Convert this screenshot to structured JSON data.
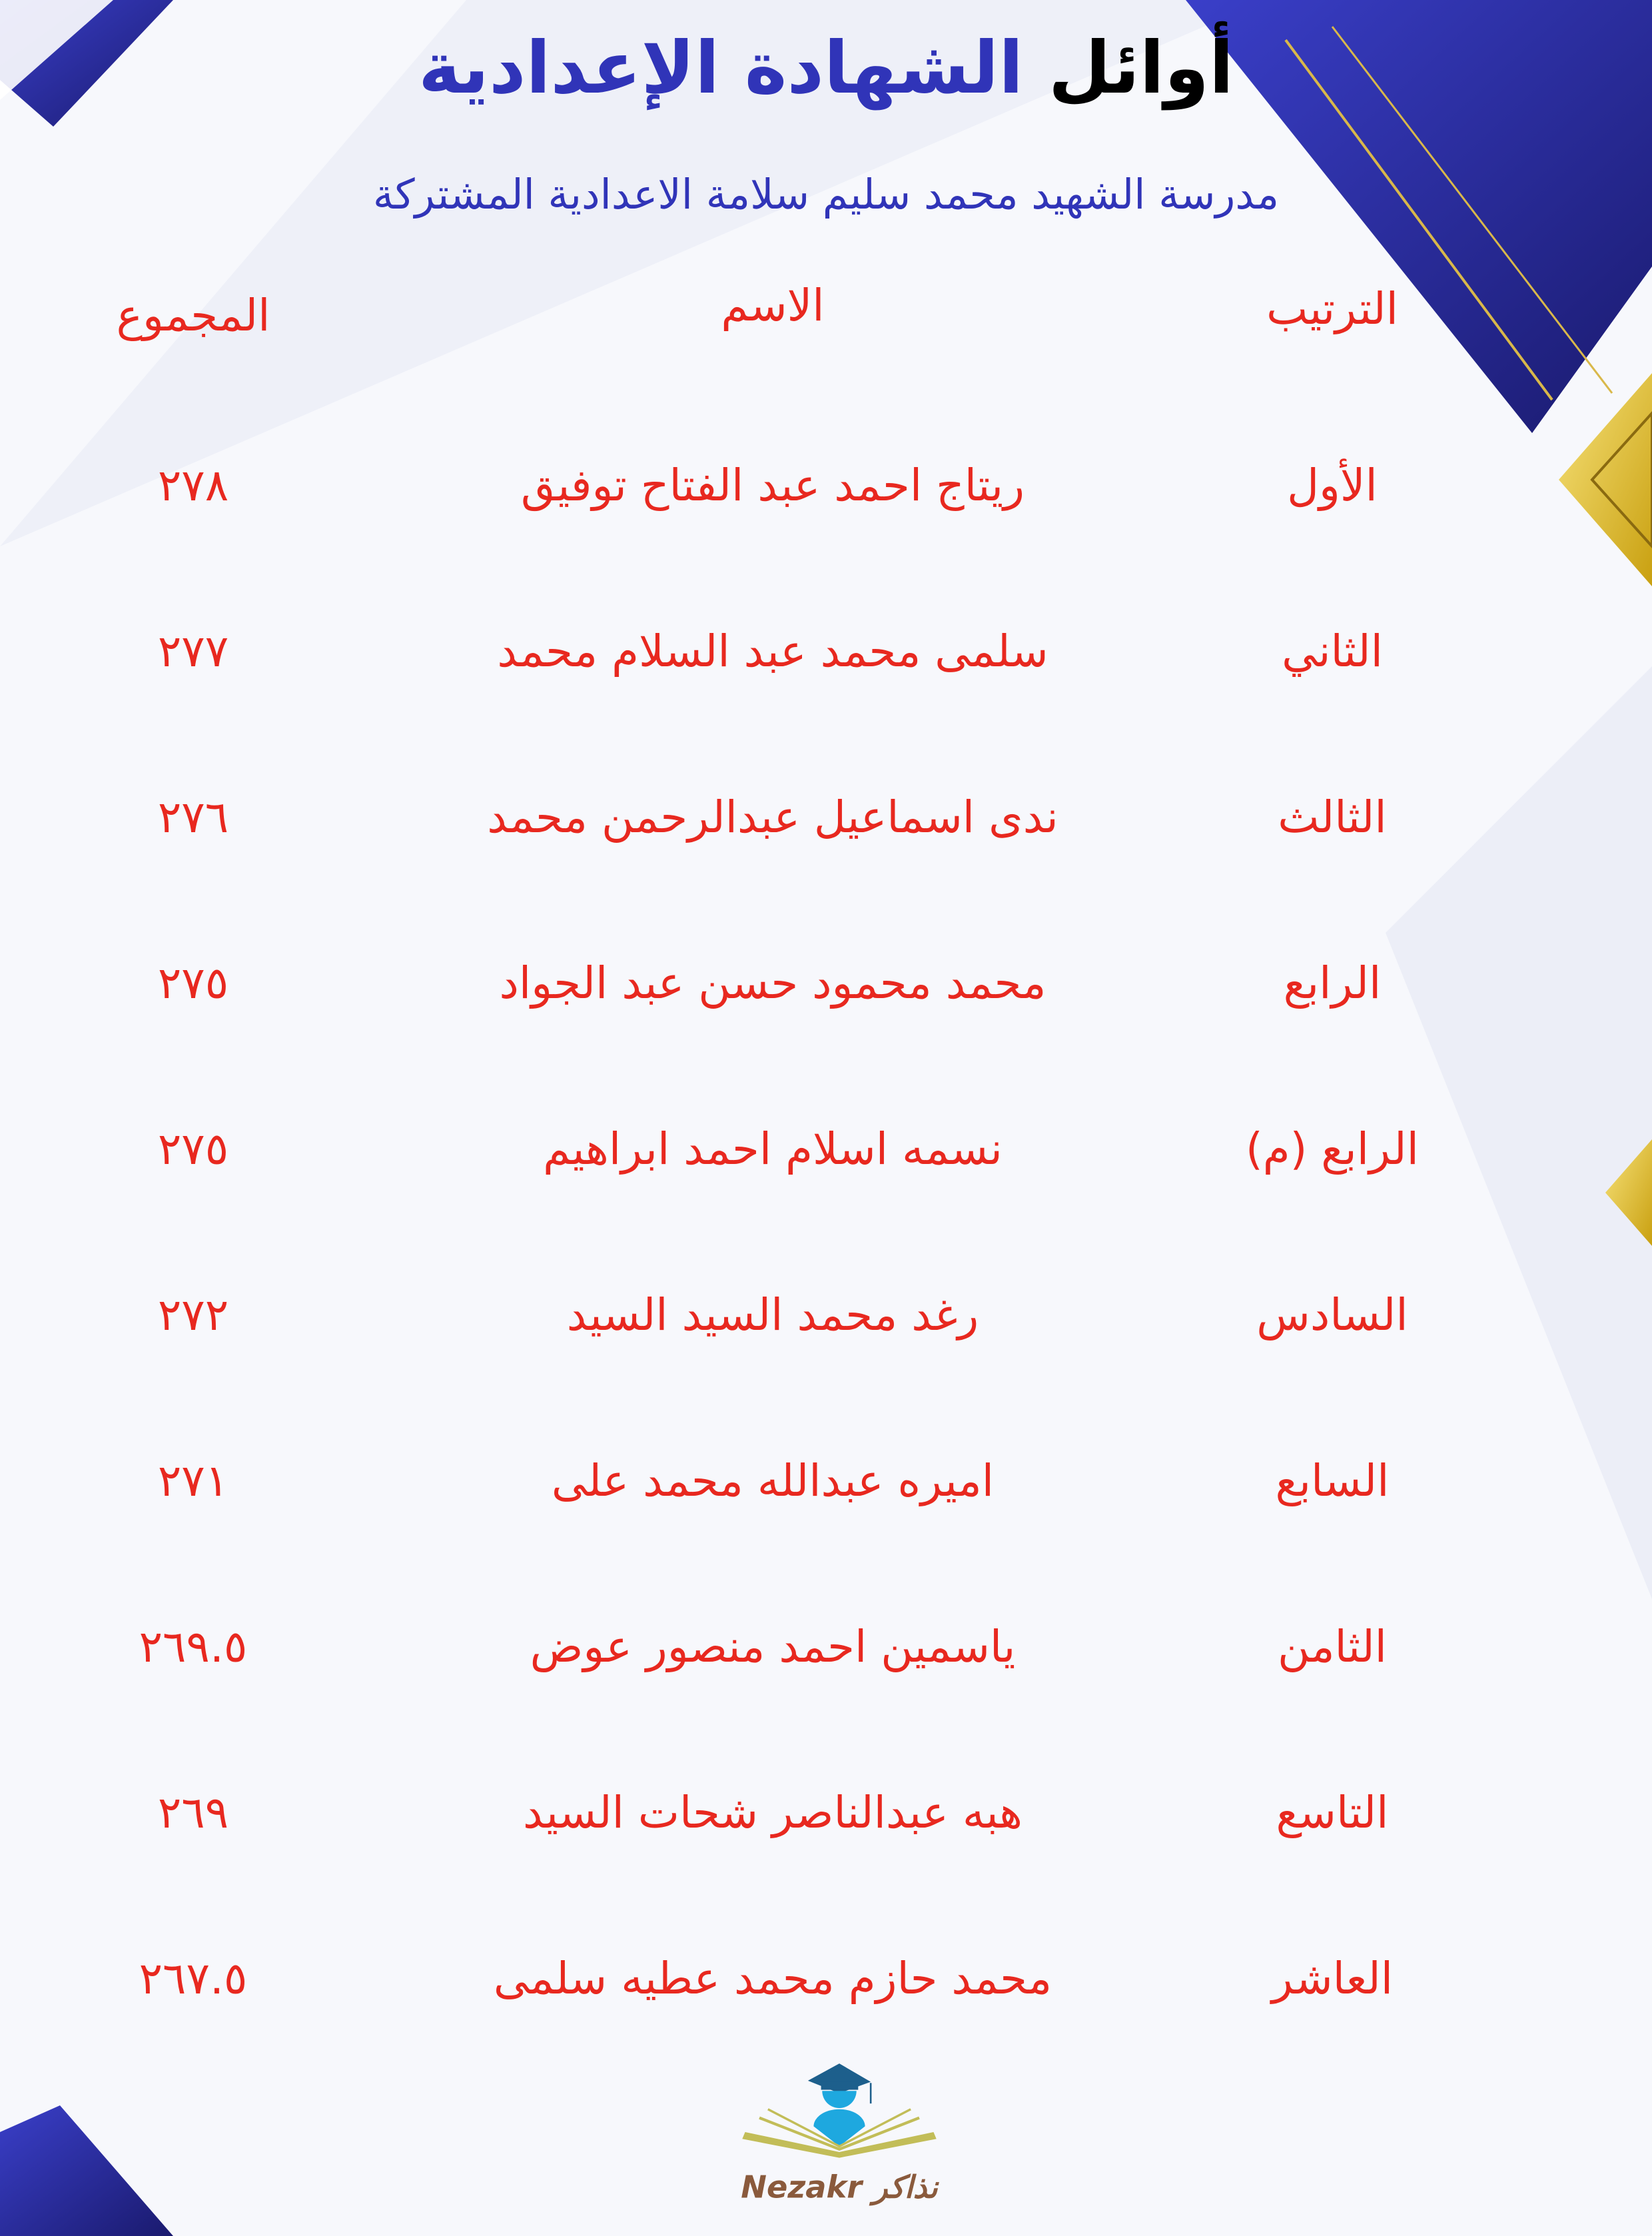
{
  "title": {
    "part1": "أوائل",
    "part2": "الشهادة الإعدادية"
  },
  "subtitle": "مدرسة الشهيد محمد سليم سلامة الاعدادية المشتركة",
  "table": {
    "headers": {
      "rank": "الترتيب",
      "name": "الاسم",
      "total": "المجموع"
    },
    "rows": [
      {
        "rank": "الأول",
        "name": "ريتاج احمد عبد الفتاح توفيق",
        "total": "٢٧٨"
      },
      {
        "rank": "الثاني",
        "name": "سلمى محمد عبد السلام محمد",
        "total": "٢٧٧"
      },
      {
        "rank": "الثالث",
        "name": "ندى اسماعيل عبدالرحمن محمد",
        "total": "٢٧٦"
      },
      {
        "rank": "الرابع",
        "name": "محمد محمود حسن عبد الجواد",
        "total": "٢٧٥"
      },
      {
        "rank": "الرابع (م)",
        "name": "نسمه اسلام احمد ابراهيم",
        "total": "٢٧٥"
      },
      {
        "rank": "السادس",
        "name": "رغد محمد السيد السيد",
        "total": "٢٧٢"
      },
      {
        "rank": "السابع",
        "name": "اميره عبدالله محمد على",
        "total": "٢٧١"
      },
      {
        "rank": "الثامن",
        "name": "ياسمين احمد منصور عوض",
        "total": "٢٦٩.٥"
      },
      {
        "rank": "التاسع",
        "name": "هبه عبدالناصر شحات السيد",
        "total": "٢٦٩"
      },
      {
        "rank": "العاشر",
        "name": "محمد حازم محمد عطيه سلمى",
        "total": "٢٦٧.٥"
      }
    ]
  },
  "logo": {
    "text": "Nezakr نذاكر",
    "icon": "graduate-book-logo"
  },
  "colors": {
    "title_blue": "#3034b8",
    "text_red": "#e8281f",
    "accent_gold": "#e6c02a",
    "deco_blue": "#2f33b5"
  }
}
